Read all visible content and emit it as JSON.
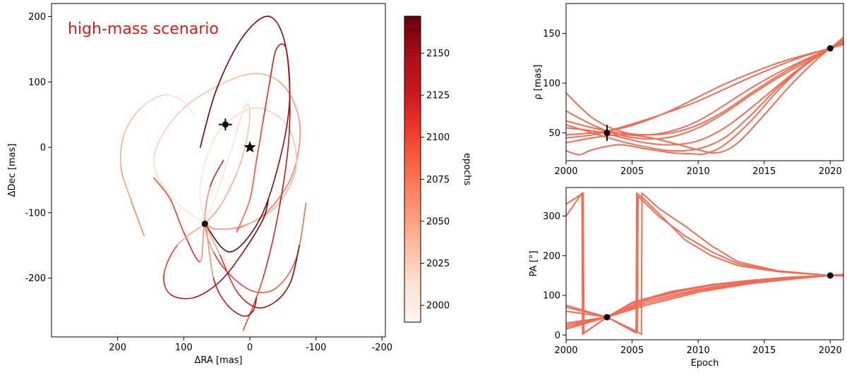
{
  "chart_data": [
    {
      "type": "line",
      "panel": "sky-orbits",
      "annotation": "high-mass scenario",
      "annotation_color": "#e8150f",
      "xlabel": "ΔRA [mas]",
      "ylabel": "ΔDec [mas]",
      "xlim": [
        300,
        -205
      ],
      "ylim": [
        -290,
        220
      ],
      "xticks": [
        200,
        100,
        0,
        -100,
        -200
      ],
      "yticks": [
        -200,
        -100,
        0,
        100,
        200
      ],
      "grid": false,
      "colorbar": {
        "label": "epochs",
        "range": [
          1990,
          2172
        ],
        "ticks": [
          2000,
          2025,
          2050,
          2075,
          2100,
          2125,
          2150
        ],
        "colormap": "Reds"
      },
      "star": {
        "x": 0,
        "y": 0
      },
      "observations": [
        {
          "x": 37,
          "y": 35,
          "xerr": 10,
          "yerr": 9
        },
        {
          "x": 68,
          "y": -117
        }
      ],
      "series": [
        {
          "x": [
            68,
            120,
            145,
            100,
            10,
            -45,
            -75,
            -65,
            -25,
            20
          ],
          "y": [
            -117,
            -75,
            -15,
            60,
            110,
            100,
            40,
            -40,
            -100,
            -125
          ],
          "epochs": [
            2003,
            2012,
            2021,
            2030,
            2040,
            2050,
            2060,
            2070,
            2080,
            2090
          ]
        },
        {
          "x": [
            68,
            75,
            50,
            -5,
            -55,
            -70,
            -40,
            10,
            50,
            68
          ],
          "y": [
            -117,
            -60,
            20,
            60,
            35,
            -30,
            -90,
            -120,
            -125,
            -117
          ],
          "epochs": [
            2003,
            2008,
            2014,
            2020,
            2027,
            2034,
            2042,
            2050,
            2060,
            2070
          ]
        },
        {
          "x": [
            68,
            50,
            30,
            15,
            5,
            0,
            5,
            20,
            45,
            68
          ],
          "y": [
            -117,
            -70,
            -10,
            40,
            65,
            55,
            10,
            -40,
            -90,
            -117
          ],
          "epochs": [
            2003,
            2006,
            2010,
            2015,
            2020,
            2026,
            2032,
            2040,
            2050,
            2060
          ]
        },
        {
          "x": [
            20,
            0,
            -10,
            -20,
            -30,
            -40,
            -55,
            -60,
            -45,
            -15,
            30,
            68
          ],
          "y": [
            -130,
            -80,
            -20,
            40,
            100,
            150,
            150,
            70,
            -20,
            -110,
            -160,
            -117
          ],
          "epochs": [
            2080,
            2090,
            2100,
            2110,
            2120,
            2130,
            2140,
            2150,
            2158,
            2163,
            2168,
            2171
          ]
        },
        {
          "x": [
            10,
            -20,
            -45,
            -60,
            -55,
            -30,
            10,
            50,
            75
          ],
          "y": [
            -280,
            -200,
            -90,
            30,
            150,
            200,
            170,
            90,
            0
          ],
          "epochs": [
            2090,
            2110,
            2125,
            2140,
            2155,
            2162,
            2166,
            2169,
            2171
          ]
        },
        {
          "x": [
            145,
            120,
            100,
            75,
            68,
            55,
            35,
            10,
            -5,
            -10
          ],
          "y": [
            -47,
            -80,
            -130,
            -175,
            -117,
            -200,
            -240,
            -258,
            -250,
            -230
          ],
          "epochs": [
            2090,
            2100,
            2110,
            2118,
            2003,
            2125,
            2135,
            2145,
            2150,
            2155
          ]
        },
        {
          "x": [
            160,
            180,
            195,
            190,
            165,
            130,
            100,
            85
          ],
          "y": [
            -135,
            -80,
            -30,
            20,
            60,
            80,
            70,
            50
          ],
          "epochs": [
            2070,
            2060,
            2050,
            2040,
            2030,
            2020,
            2010,
            2005
          ]
        },
        {
          "x": [
            -85,
            -70,
            -40,
            -5,
            30,
            55,
            68,
            60,
            40
          ],
          "y": [
            -85,
            -170,
            -215,
            -220,
            -195,
            -160,
            -117,
            -60,
            -20
          ],
          "epochs": [
            2080,
            2085,
            2092,
            2098,
            2104,
            2110,
            2003,
            2118,
            2125
          ]
        },
        {
          "x": [
            68,
            45,
            20,
            -10,
            -40,
            -62,
            -75
          ],
          "y": [
            -117,
            -165,
            -220,
            -245,
            -235,
            -205,
            -150
          ],
          "epochs": [
            2003,
            2100,
            2120,
            2135,
            2150,
            2160,
            2168
          ]
        },
        {
          "x": [
            68,
            110,
            130,
            120,
            85,
            45,
            10,
            -20,
            -28
          ],
          "y": [
            -117,
            -150,
            -195,
            -225,
            -230,
            -205,
            -160,
            -110,
            -80
          ],
          "epochs": [
            2003,
            2095,
            2115,
            2128,
            2140,
            2150,
            2158,
            2165,
            2170
          ]
        }
      ]
    },
    {
      "type": "line",
      "panel": "separation",
      "xlabel": "",
      "ylabel": "ρ [mas]",
      "xlim": [
        2000,
        2021
      ],
      "ylim": [
        22,
        180
      ],
      "xticks": [
        2000,
        2005,
        2010,
        2015,
        2020
      ],
      "yticks": [
        50,
        100,
        150
      ],
      "line_color": "#f36b54",
      "observations": [
        {
          "x": 2003.1,
          "y": 50,
          "yerr": 8
        },
        {
          "x": 2020.0,
          "y": 135
        }
      ],
      "series": [
        {
          "x": [
            2000,
            2002,
            2004,
            2006,
            2008,
            2010,
            2012,
            2014,
            2016,
            2018,
            2020,
            2021
          ],
          "y": [
            90,
            65,
            52,
            48,
            52,
            62,
            78,
            95,
            110,
            123,
            135,
            142
          ]
        },
        {
          "x": [
            2000,
            2002,
            2004,
            2006,
            2008,
            2010,
            2012,
            2014,
            2016,
            2018,
            2020,
            2021
          ],
          "y": [
            72,
            58,
            48,
            44,
            46,
            55,
            70,
            88,
            105,
            120,
            135,
            141
          ]
        },
        {
          "x": [
            2000,
            2002,
            2004,
            2006,
            2008,
            2010,
            2012,
            2014,
            2016,
            2018,
            2020,
            2021
          ],
          "y": [
            62,
            55,
            50,
            48,
            50,
            58,
            72,
            90,
            107,
            122,
            135,
            140
          ]
        },
        {
          "x": [
            2000,
            2002,
            2004,
            2006,
            2008,
            2010,
            2012,
            2014,
            2016,
            2018,
            2020,
            2021
          ],
          "y": [
            48,
            50,
            54,
            62,
            73,
            86,
            99,
            110,
            120,
            128,
            135,
            139
          ]
        },
        {
          "x": [
            2000,
            2002,
            2004,
            2006,
            2008,
            2010,
            2012,
            2014,
            2016,
            2018,
            2020,
            2021
          ],
          "y": [
            45,
            48,
            55,
            63,
            72,
            82,
            94,
            106,
            117,
            127,
            135,
            139
          ]
        },
        {
          "x": [
            2000,
            2002,
            2004,
            2006,
            2008,
            2010,
            2012,
            2014,
            2016,
            2018,
            2020,
            2021
          ],
          "y": [
            55,
            52,
            46,
            40,
            38,
            42,
            55,
            75,
            97,
            118,
            135,
            142
          ]
        },
        {
          "x": [
            2000,
            2002,
            2004,
            2006,
            2008,
            2010,
            2012,
            2014,
            2016,
            2018,
            2020,
            2021
          ],
          "y": [
            58,
            50,
            42,
            36,
            32,
            34,
            45,
            68,
            95,
            117,
            135,
            142
          ]
        },
        {
          "x": [
            2000,
            2001,
            2002,
            2004,
            2006,
            2008,
            2009.5,
            2010.5,
            2012,
            2014,
            2016,
            2018,
            2020,
            2021
          ],
          "y": [
            32,
            28,
            33,
            38,
            34,
            30,
            29,
            29,
            38,
            62,
            92,
            117,
            135,
            144
          ]
        },
        {
          "x": [
            2000,
            2002,
            2004,
            2006,
            2008,
            2010,
            2011.5,
            2013,
            2015,
            2017,
            2019,
            2020,
            2021
          ],
          "y": [
            40,
            45,
            48,
            46,
            40,
            33,
            30,
            40,
            68,
            98,
            124,
            135,
            146
          ]
        }
      ]
    },
    {
      "type": "line",
      "panel": "position-angle",
      "xlabel": "Epoch",
      "ylabel": "PA [°]",
      "xlim": [
        2000,
        2021
      ],
      "ylim": [
        -12,
        372
      ],
      "xticks": [
        2000,
        2005,
        2010,
        2015,
        2020
      ],
      "yticks": [
        0,
        100,
        200,
        300
      ],
      "line_color": "#f36b54",
      "observations": [
        {
          "x": 2003.1,
          "y": 45
        },
        {
          "x": 2020.0,
          "y": 150
        }
      ],
      "series": [
        {
          "x": [
            2000,
            2001.2,
            2001.25,
            2003.1,
            2005,
            2008,
            2011,
            2014,
            2017,
            2020,
            2021
          ],
          "y": [
            300,
            358,
            2,
            45,
            80,
            107,
            125,
            137,
            145,
            150,
            152
          ]
        },
        {
          "x": [
            2000,
            2001.3,
            2001.35,
            2003.1,
            2005,
            2008,
            2011,
            2014,
            2017,
            2020,
            2021
          ],
          "y": [
            330,
            358,
            5,
            45,
            82,
            110,
            127,
            138,
            146,
            150,
            152
          ]
        },
        {
          "x": [
            2000,
            2003.1,
            2005.3,
            2005.35,
            2006,
            2007.5,
            2009,
            2011,
            2013,
            2016,
            2020,
            2021
          ],
          "y": [
            75,
            45,
            5,
            358,
            340,
            290,
            240,
            200,
            175,
            160,
            150,
            149
          ]
        },
        {
          "x": [
            2000,
            2003.1,
            2005.7,
            2005.75,
            2007,
            2009,
            2011,
            2013,
            2016,
            2020,
            2021
          ],
          "y": [
            60,
            45,
            2,
            358,
            320,
            275,
            225,
            185,
            162,
            150,
            149
          ]
        },
        {
          "x": [
            2000,
            2003.1,
            2005.4,
            2005.45,
            2007,
            2009,
            2011,
            2013,
            2016,
            2020,
            2021
          ],
          "y": [
            70,
            45,
            8,
            350,
            300,
            250,
            210,
            180,
            160,
            150,
            149
          ]
        },
        {
          "x": [
            2000,
            2003.1,
            2006,
            2010,
            2014,
            2018,
            2020,
            2021
          ],
          "y": [
            20,
            45,
            80,
            112,
            132,
            145,
            150,
            152
          ]
        },
        {
          "x": [
            2000,
            2003.1,
            2006,
            2010,
            2014,
            2018,
            2020,
            2021
          ],
          "y": [
            25,
            45,
            85,
            115,
            135,
            146,
            150,
            152
          ]
        },
        {
          "x": [
            2000,
            2003.1,
            2006,
            2010,
            2014,
            2018,
            2020,
            2021
          ],
          "y": [
            30,
            45,
            90,
            120,
            138,
            147,
            150,
            151
          ]
        },
        {
          "x": [
            2000,
            2003.1,
            2006,
            2010,
            2014,
            2018,
            2020,
            2021
          ],
          "y": [
            15,
            45,
            75,
            108,
            130,
            144,
            150,
            153
          ]
        }
      ]
    }
  ]
}
